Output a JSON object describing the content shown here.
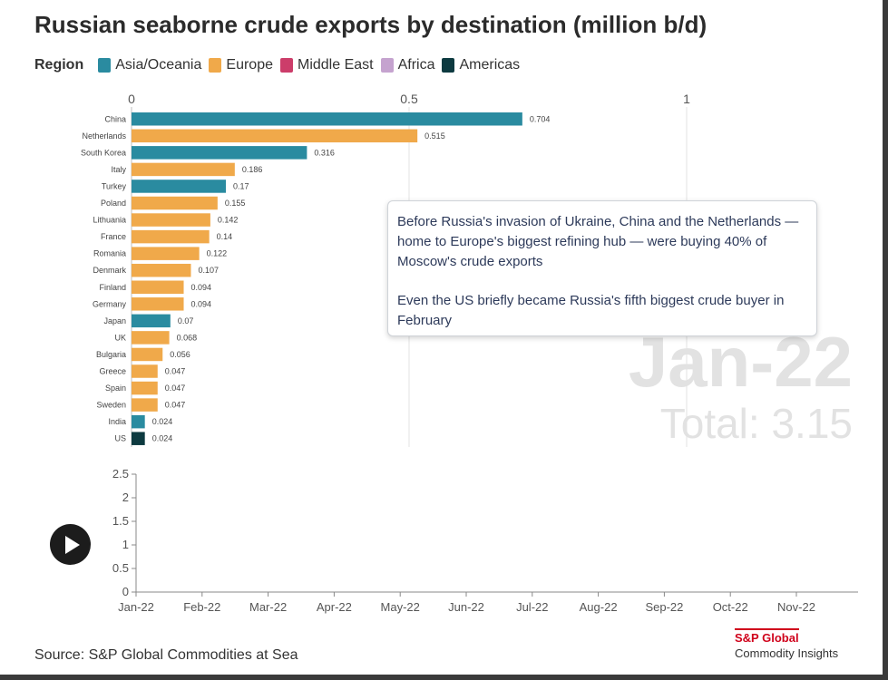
{
  "title": "Russian seaborne crude exports by destination (million b/d)",
  "legend": {
    "title": "Region",
    "items": [
      {
        "label": "Asia/Oceania",
        "color": "#2a8ba0"
      },
      {
        "label": "Europe",
        "color": "#f0a94a"
      },
      {
        "label": "Middle East",
        "color": "#cc3d6a"
      },
      {
        "label": "Africa",
        "color": "#c5a3cf"
      },
      {
        "label": "Americas",
        "color": "#0d3a40"
      }
    ]
  },
  "callout": {
    "p1": "Before Russia's invasion of Ukraine, China and the Netherlands — home to Europe's biggest refining hub — were buying 40% of Moscow's crude exports",
    "p2": "Even the US briefly became Russia's fifth biggest crude buyer in February"
  },
  "period": "Jan-22",
  "total": "Total: 3.15",
  "play": {
    "icon": "play-icon"
  },
  "source": "Source: S&P Global Commodities at Sea",
  "logo": {
    "line1": "S&P Global",
    "line2": "Commodity Insights"
  },
  "chart_data": [
    {
      "type": "bar",
      "orientation": "horizontal",
      "xlim": [
        0,
        1.3
      ],
      "x_ticks": [
        "0",
        "0.5",
        "1"
      ],
      "grid": true,
      "bars": [
        {
          "category": "China",
          "value": 0.704,
          "region": "Asia/Oceania"
        },
        {
          "category": "Netherlands",
          "value": 0.515,
          "region": "Europe"
        },
        {
          "category": "South Korea",
          "value": 0.316,
          "region": "Asia/Oceania"
        },
        {
          "category": "Italy",
          "value": 0.186,
          "region": "Europe"
        },
        {
          "category": "Turkey",
          "value": 0.17,
          "region": "Asia/Oceania"
        },
        {
          "category": "Poland",
          "value": 0.155,
          "region": "Europe"
        },
        {
          "category": "Lithuania",
          "value": 0.142,
          "region": "Europe"
        },
        {
          "category": "France",
          "value": 0.14,
          "region": "Europe"
        },
        {
          "category": "Romania",
          "value": 0.122,
          "region": "Europe"
        },
        {
          "category": "Denmark",
          "value": 0.107,
          "region": "Europe"
        },
        {
          "category": "Finland",
          "value": 0.094,
          "region": "Europe"
        },
        {
          "category": "Germany",
          "value": 0.094,
          "region": "Europe"
        },
        {
          "category": "Japan",
          "value": 0.07,
          "region": "Asia/Oceania"
        },
        {
          "category": "UK",
          "value": 0.068,
          "region": "Europe"
        },
        {
          "category": "Bulgaria",
          "value": 0.056,
          "region": "Europe"
        },
        {
          "category": "Greece",
          "value": 0.047,
          "region": "Europe"
        },
        {
          "category": "Spain",
          "value": 0.047,
          "region": "Europe"
        },
        {
          "category": "Sweden",
          "value": 0.047,
          "region": "Europe"
        },
        {
          "category": "India",
          "value": 0.024,
          "region": "Asia/Oceania"
        },
        {
          "category": "US",
          "value": 0.024,
          "region": "Americas"
        }
      ]
    },
    {
      "type": "line",
      "x": [
        "Jan-22",
        "Feb-22",
        "Mar-22",
        "Apr-22",
        "May-22",
        "Jun-22",
        "Jul-22",
        "Aug-22",
        "Sep-22",
        "Oct-22",
        "Nov-22"
      ],
      "ylim": [
        0,
        2.5
      ],
      "y_ticks": [
        "0",
        "0.5",
        "1",
        "1.5",
        "2",
        "2.5"
      ],
      "series": []
    }
  ]
}
